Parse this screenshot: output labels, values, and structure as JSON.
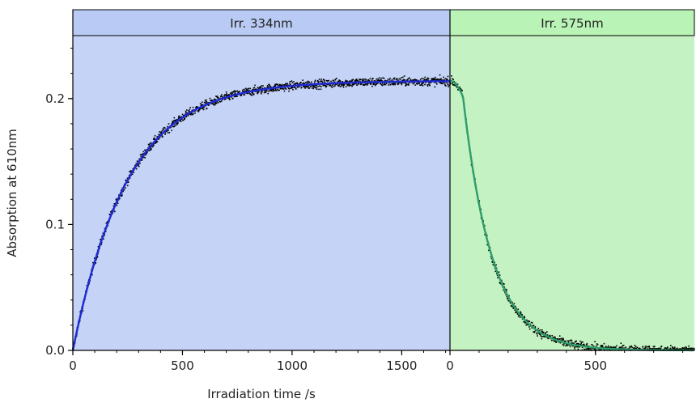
{
  "chart_data": {
    "type": "scatter",
    "xlabel": "Irradiation time /s",
    "ylabel": "Absorption at 610nm",
    "ylim": [
      0,
      0.25
    ],
    "y_ticks": [
      "0.0",
      "0.1",
      "0.2"
    ],
    "grid": false,
    "phases": [
      {
        "label": "Irr. 334nm",
        "fill_color": "#c5d3f7",
        "header_color": "#b9cbf5",
        "fit_color": "#1f2bd6",
        "xlim": [
          0,
          1720
        ],
        "x_ticks": [
          "0",
          "500",
          "1000",
          "1500"
        ],
        "fit": {
          "model": "rise",
          "A_end": 0.214,
          "tau_s": 250
        },
        "sample_points": [
          {
            "x": 0,
            "y": 0.0
          },
          {
            "x": 100,
            "y": 0.071
          },
          {
            "x": 200,
            "y": 0.118
          },
          {
            "x": 300,
            "y": 0.15
          },
          {
            "x": 400,
            "y": 0.172
          },
          {
            "x": 500,
            "y": 0.186
          },
          {
            "x": 700,
            "y": 0.202
          },
          {
            "x": 1000,
            "y": 0.21
          },
          {
            "x": 1500,
            "y": 0.214
          },
          {
            "x": 1720,
            "y": 0.214
          }
        ]
      },
      {
        "label": "Irr. 575nm",
        "fill_color": "#c4f2c2",
        "header_color": "#b9f3b6",
        "fit_color": "#2e9e6b",
        "xlim": [
          0,
          840
        ],
        "x_ticks": [
          "0",
          "500"
        ],
        "fit": {
          "model": "decay",
          "A_start": 0.214,
          "tau_s": 100,
          "lag_s": 45
        },
        "sample_points": [
          {
            "x": 0,
            "y": 0.214
          },
          {
            "x": 50,
            "y": 0.2
          },
          {
            "x": 100,
            "y": 0.132
          },
          {
            "x": 200,
            "y": 0.048
          },
          {
            "x": 300,
            "y": 0.017
          },
          {
            "x": 400,
            "y": 0.006
          },
          {
            "x": 500,
            "y": 0.002
          },
          {
            "x": 840,
            "y": 0.0
          }
        ]
      }
    ]
  }
}
